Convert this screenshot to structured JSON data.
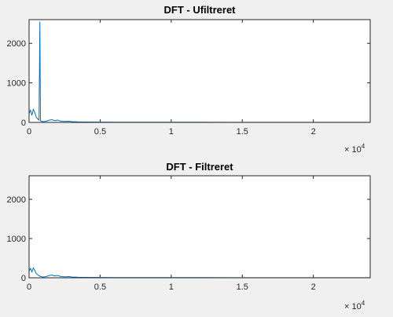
{
  "chart_data": [
    {
      "type": "line",
      "title": "DFT - Ufiltreret",
      "xlim": [
        0,
        24000
      ],
      "ylim": [
        0,
        2600
      ],
      "x_ticks": [
        0,
        5000,
        10000,
        15000,
        20000
      ],
      "x_tick_labels": [
        "0",
        "0.5",
        "1",
        "1.5",
        "2"
      ],
      "y_ticks": [
        0,
        1000,
        2000
      ],
      "y_tick_labels": [
        "0",
        "1000",
        "2000"
      ],
      "x_exponent_base": "× 10",
      "x_exponent_power": "4",
      "series": [
        {
          "color": "#0072bd",
          "x": [
            0,
            100,
            200,
            300,
            400,
            500,
            600,
            700,
            760,
            800,
            850,
            900,
            1000,
            1200,
            1400,
            1600,
            1800,
            2000,
            2200,
            2500,
            2800,
            3000,
            3500,
            4000,
            5000,
            6000,
            8000,
            10000,
            12000,
            15000,
            20000,
            24000
          ],
          "y": [
            220,
            310,
            180,
            330,
            250,
            140,
            90,
            60,
            2550,
            40,
            30,
            25,
            20,
            30,
            55,
            70,
            45,
            60,
            35,
            25,
            30,
            20,
            12,
            10,
            8,
            6,
            5,
            4,
            4,
            3,
            3,
            2
          ]
        }
      ]
    },
    {
      "type": "line",
      "title": "DFT - Filtreret",
      "xlim": [
        0,
        24000
      ],
      "ylim": [
        0,
        2600
      ],
      "x_ticks": [
        0,
        5000,
        10000,
        15000,
        20000
      ],
      "x_tick_labels": [
        "0",
        "0.5",
        "1",
        "1.5",
        "2"
      ],
      "y_ticks": [
        0,
        1000,
        2000
      ],
      "y_tick_labels": [
        "0",
        "1000",
        "2000"
      ],
      "x_exponent_base": "× 10",
      "x_exponent_power": "4",
      "series": [
        {
          "color": "#0072bd",
          "x": [
            0,
            100,
            200,
            300,
            400,
            500,
            600,
            700,
            800,
            900,
            1000,
            1200,
            1400,
            1600,
            1800,
            2000,
            2200,
            2500,
            2800,
            3000,
            3500,
            4000,
            5000,
            6000,
            8000,
            10000,
            12000,
            15000,
            20000,
            24000
          ],
          "y": [
            170,
            240,
            150,
            250,
            190,
            110,
            80,
            50,
            35,
            25,
            20,
            30,
            55,
            70,
            45,
            60,
            35,
            25,
            30,
            20,
            12,
            10,
            8,
            6,
            5,
            4,
            4,
            3,
            3,
            2
          ]
        }
      ]
    }
  ]
}
